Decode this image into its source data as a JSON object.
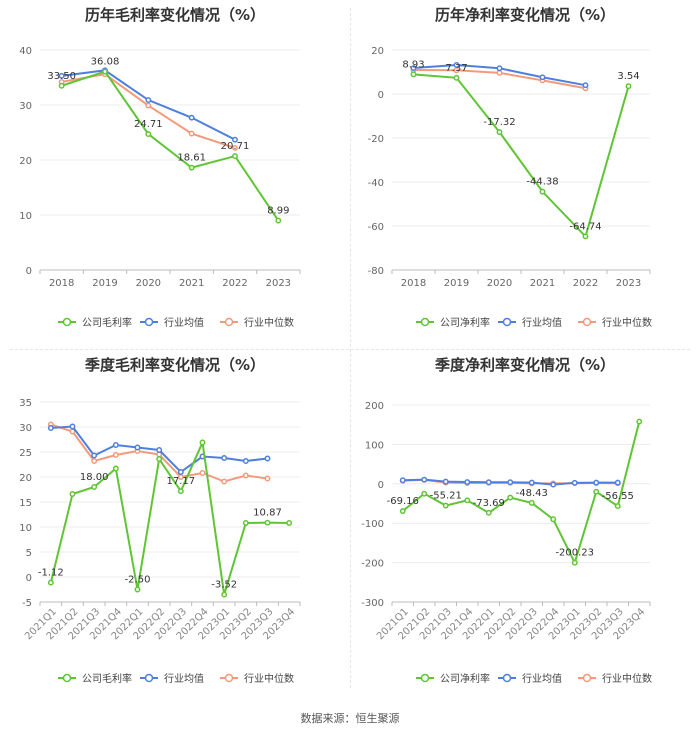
{
  "source": "数据来源：恒生聚源",
  "colors": {
    "company": "#5fc534",
    "avg": "#4f7fde",
    "median": "#f49a7b"
  },
  "charts": [
    {
      "id": "annual-gross",
      "title": "历年毛利率变化情况（%）",
      "type": "line",
      "categories": [
        "2018",
        "2019",
        "2020",
        "2021",
        "2022",
        "2023"
      ],
      "ylim": [
        0,
        40
      ],
      "yticks": [
        0,
        10,
        20,
        30,
        40
      ],
      "legend": [
        "公司毛利率",
        "行业均值",
        "行业中位数"
      ],
      "series": [
        {
          "name": "公司毛利率",
          "values": [
            33.5,
            36.08,
            24.71,
            18.61,
            20.71,
            8.99
          ]
        },
        {
          "name": "行业均值",
          "values": [
            35.3,
            36.3,
            30.9,
            27.7,
            23.7,
            null
          ]
        },
        {
          "name": "行业中位数",
          "values": [
            34.2,
            35.6,
            29.9,
            24.8,
            22.2,
            null
          ]
        }
      ],
      "labels": [
        {
          "i": 0,
          "text": "33.50"
        },
        {
          "i": 1,
          "text": "36.08"
        },
        {
          "i": 2,
          "text": "24.71"
        },
        {
          "i": 3,
          "text": "18.61"
        },
        {
          "i": 4,
          "text": "20.71"
        },
        {
          "i": 5,
          "text": "8.99"
        }
      ]
    },
    {
      "id": "annual-net",
      "title": "历年净利率变化情况（%）",
      "type": "line",
      "categories": [
        "2018",
        "2019",
        "2020",
        "2021",
        "2022",
        "2023"
      ],
      "ylim": [
        -80,
        20
      ],
      "yticks": [
        -80,
        -60,
        -40,
        -20,
        0,
        20
      ],
      "legend": [
        "公司净利率",
        "行业均值",
        "行业中位数"
      ],
      "series": [
        {
          "name": "公司净利率",
          "values": [
            8.93,
            7.37,
            -17.32,
            -44.38,
            -64.74,
            3.54
          ]
        },
        {
          "name": "行业均值",
          "values": [
            11.8,
            13.2,
            11.7,
            7.6,
            4.0,
            null
          ]
        },
        {
          "name": "行业中位数",
          "values": [
            10.9,
            10.8,
            9.6,
            6.2,
            2.6,
            null
          ]
        }
      ],
      "labels": [
        {
          "i": 0,
          "text": "8.93"
        },
        {
          "i": 1,
          "text": "7.37"
        },
        {
          "i": 2,
          "text": "-17.32"
        },
        {
          "i": 3,
          "text": "-44.38"
        },
        {
          "i": 4,
          "text": "-64.74"
        },
        {
          "i": 5,
          "text": "3.54"
        }
      ]
    },
    {
      "id": "quarterly-gross",
      "title": "季度毛利率变化情况（%）",
      "type": "line",
      "categories": [
        "2021Q1",
        "2021Q2",
        "2021Q3",
        "2021Q4",
        "2022Q1",
        "2022Q2",
        "2022Q3",
        "2022Q4",
        "2023Q1",
        "2023Q2",
        "2023Q3",
        "2023Q4"
      ],
      "ylim": [
        -5,
        35
      ],
      "yticks": [
        -5,
        0,
        5,
        10,
        15,
        20,
        25,
        30,
        35
      ],
      "legend": [
        "公司毛利率",
        "行业均值",
        "行业中位数"
      ],
      "series": [
        {
          "name": "公司毛利率",
          "values": [
            -1.12,
            16.6,
            18.0,
            21.7,
            -2.5,
            23.6,
            17.17,
            26.9,
            -3.52,
            10.8,
            10.87,
            10.8
          ]
        },
        {
          "name": "行业均值",
          "values": [
            29.8,
            30.1,
            24.3,
            26.4,
            25.9,
            25.4,
            21.0,
            24.1,
            23.8,
            23.2,
            23.7,
            null
          ]
        },
        {
          "name": "行业中位数",
          "values": [
            30.5,
            29.1,
            23.2,
            24.4,
            25.2,
            24.5,
            20.0,
            20.8,
            19.1,
            20.3,
            19.7,
            null
          ]
        }
      ],
      "labels": [
        {
          "i": 0,
          "text": "-1.12"
        },
        {
          "i": 2,
          "text": "18.00"
        },
        {
          "i": 4,
          "text": "-2.50"
        },
        {
          "i": 6,
          "text": "17.17"
        },
        {
          "i": 8,
          "text": "-3.52"
        },
        {
          "i": 10,
          "text": "10.87"
        }
      ]
    },
    {
      "id": "quarterly-net",
      "title": "季度净利率变化情况（%）",
      "type": "line",
      "categories": [
        "2021Q1",
        "2021Q2",
        "2021Q3",
        "2021Q4",
        "2022Q1",
        "2022Q2",
        "2022Q3",
        "2022Q4",
        "2023Q1",
        "2023Q2",
        "2023Q3",
        "2023Q4"
      ],
      "ylim": [
        -300,
        200
      ],
      "yticks": [
        -300,
        -200,
        -100,
        0,
        100,
        200
      ],
      "legend": [
        "公司净利率",
        "行业均值",
        "行业中位数"
      ],
      "series": [
        {
          "name": "公司净利率",
          "values": [
            -69.16,
            -25.0,
            -55.21,
            -42.0,
            -73.69,
            -35.0,
            -48.43,
            -90.0,
            -200.23,
            -20.0,
            -56.55,
            158.0
          ]
        },
        {
          "name": "行业均值",
          "values": [
            9.0,
            10.5,
            5.5,
            4.5,
            4.0,
            4.0,
            3.0,
            -2.0,
            2.5,
            3.0,
            3.0,
            null
          ]
        },
        {
          "name": "行业中位数",
          "values": [
            8.0,
            10.0,
            3.0,
            2.0,
            2.5,
            2.5,
            1.0,
            1.0,
            1.5,
            2.0,
            1.5,
            null
          ]
        }
      ],
      "labels": [
        {
          "i": 0,
          "text": "-69.16"
        },
        {
          "i": 2,
          "text": "-55.21"
        },
        {
          "i": 4,
          "text": "-73.69"
        },
        {
          "i": 6,
          "text": "-48.43"
        },
        {
          "i": 8,
          "text": "-200.23"
        },
        {
          "i": 10,
          "text": "-56.55"
        }
      ]
    }
  ],
  "chart_data": [
    {
      "type": "line",
      "title": "历年毛利率变化情况（%）",
      "categories": [
        "2018",
        "2019",
        "2020",
        "2021",
        "2022",
        "2023"
      ],
      "ylim": [
        0,
        40
      ],
      "series": [
        {
          "name": "公司毛利率",
          "values": [
            33.5,
            36.08,
            24.71,
            18.61,
            20.71,
            8.99
          ]
        },
        {
          "name": "行业均值",
          "values": [
            35.3,
            36.3,
            30.9,
            27.7,
            23.7,
            null
          ]
        },
        {
          "name": "行业中位数",
          "values": [
            34.2,
            35.6,
            29.9,
            24.8,
            22.2,
            null
          ]
        }
      ]
    },
    {
      "type": "line",
      "title": "历年净利率变化情况（%）",
      "categories": [
        "2018",
        "2019",
        "2020",
        "2021",
        "2022",
        "2023"
      ],
      "ylim": [
        -80,
        20
      ],
      "series": [
        {
          "name": "公司净利率",
          "values": [
            8.93,
            7.37,
            -17.32,
            -44.38,
            -64.74,
            3.54
          ]
        },
        {
          "name": "行业均值",
          "values": [
            11.8,
            13.2,
            11.7,
            7.6,
            4.0,
            null
          ]
        },
        {
          "name": "行业中位数",
          "values": [
            10.9,
            10.8,
            9.6,
            6.2,
            2.6,
            null
          ]
        }
      ]
    },
    {
      "type": "line",
      "title": "季度毛利率变化情况（%）",
      "categories": [
        "2021Q1",
        "2021Q2",
        "2021Q3",
        "2021Q4",
        "2022Q1",
        "2022Q2",
        "2022Q3",
        "2022Q4",
        "2023Q1",
        "2023Q2",
        "2023Q3",
        "2023Q4"
      ],
      "ylim": [
        -5,
        35
      ],
      "series": [
        {
          "name": "公司毛利率",
          "values": [
            -1.12,
            16.6,
            18.0,
            21.7,
            -2.5,
            23.6,
            17.17,
            26.9,
            -3.52,
            10.8,
            10.87,
            10.8
          ]
        },
        {
          "name": "行业均值",
          "values": [
            29.8,
            30.1,
            24.3,
            26.4,
            25.9,
            25.4,
            21.0,
            24.1,
            23.8,
            23.2,
            23.7,
            null
          ]
        },
        {
          "name": "行业中位数",
          "values": [
            30.5,
            29.1,
            23.2,
            24.4,
            25.2,
            24.5,
            20.0,
            20.8,
            19.1,
            20.3,
            19.7,
            null
          ]
        }
      ]
    },
    {
      "type": "line",
      "title": "季度净利率变化情况（%）",
      "categories": [
        "2021Q1",
        "2021Q2",
        "2021Q3",
        "2021Q4",
        "2022Q1",
        "2022Q2",
        "2022Q3",
        "2022Q4",
        "2023Q1",
        "2023Q2",
        "2023Q3",
        "2023Q4"
      ],
      "ylim": [
        -300,
        200
      ],
      "series": [
        {
          "name": "公司净利率",
          "values": [
            -69.16,
            -25.0,
            -55.21,
            -42.0,
            -73.69,
            -35.0,
            -48.43,
            -90.0,
            -200.23,
            -20.0,
            -56.55,
            158.0
          ]
        },
        {
          "name": "行业均值",
          "values": [
            9.0,
            10.5,
            5.5,
            4.5,
            4.0,
            4.0,
            3.0,
            -2.0,
            2.5,
            3.0,
            3.0,
            null
          ]
        },
        {
          "name": "行业中位数",
          "values": [
            8.0,
            10.0,
            3.0,
            2.0,
            2.5,
            2.5,
            1.0,
            1.0,
            1.5,
            2.0,
            1.5,
            null
          ]
        }
      ]
    }
  ]
}
